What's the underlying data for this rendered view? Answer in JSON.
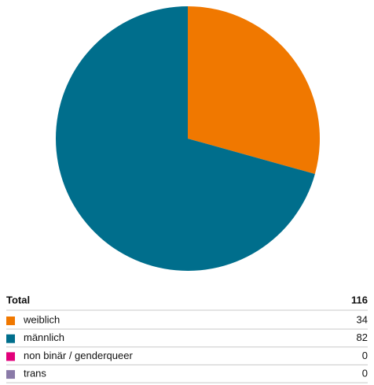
{
  "chart_data": {
    "type": "pie",
    "categories": [
      "weiblich",
      "männlich",
      "non binär / genderqueer",
      "trans"
    ],
    "values": [
      34,
      82,
      0,
      0
    ],
    "colors": [
      "#f07800",
      "#006e8c",
      "#e2007a",
      "#8a7aa8"
    ],
    "total_label": "Total",
    "total": 116
  }
}
